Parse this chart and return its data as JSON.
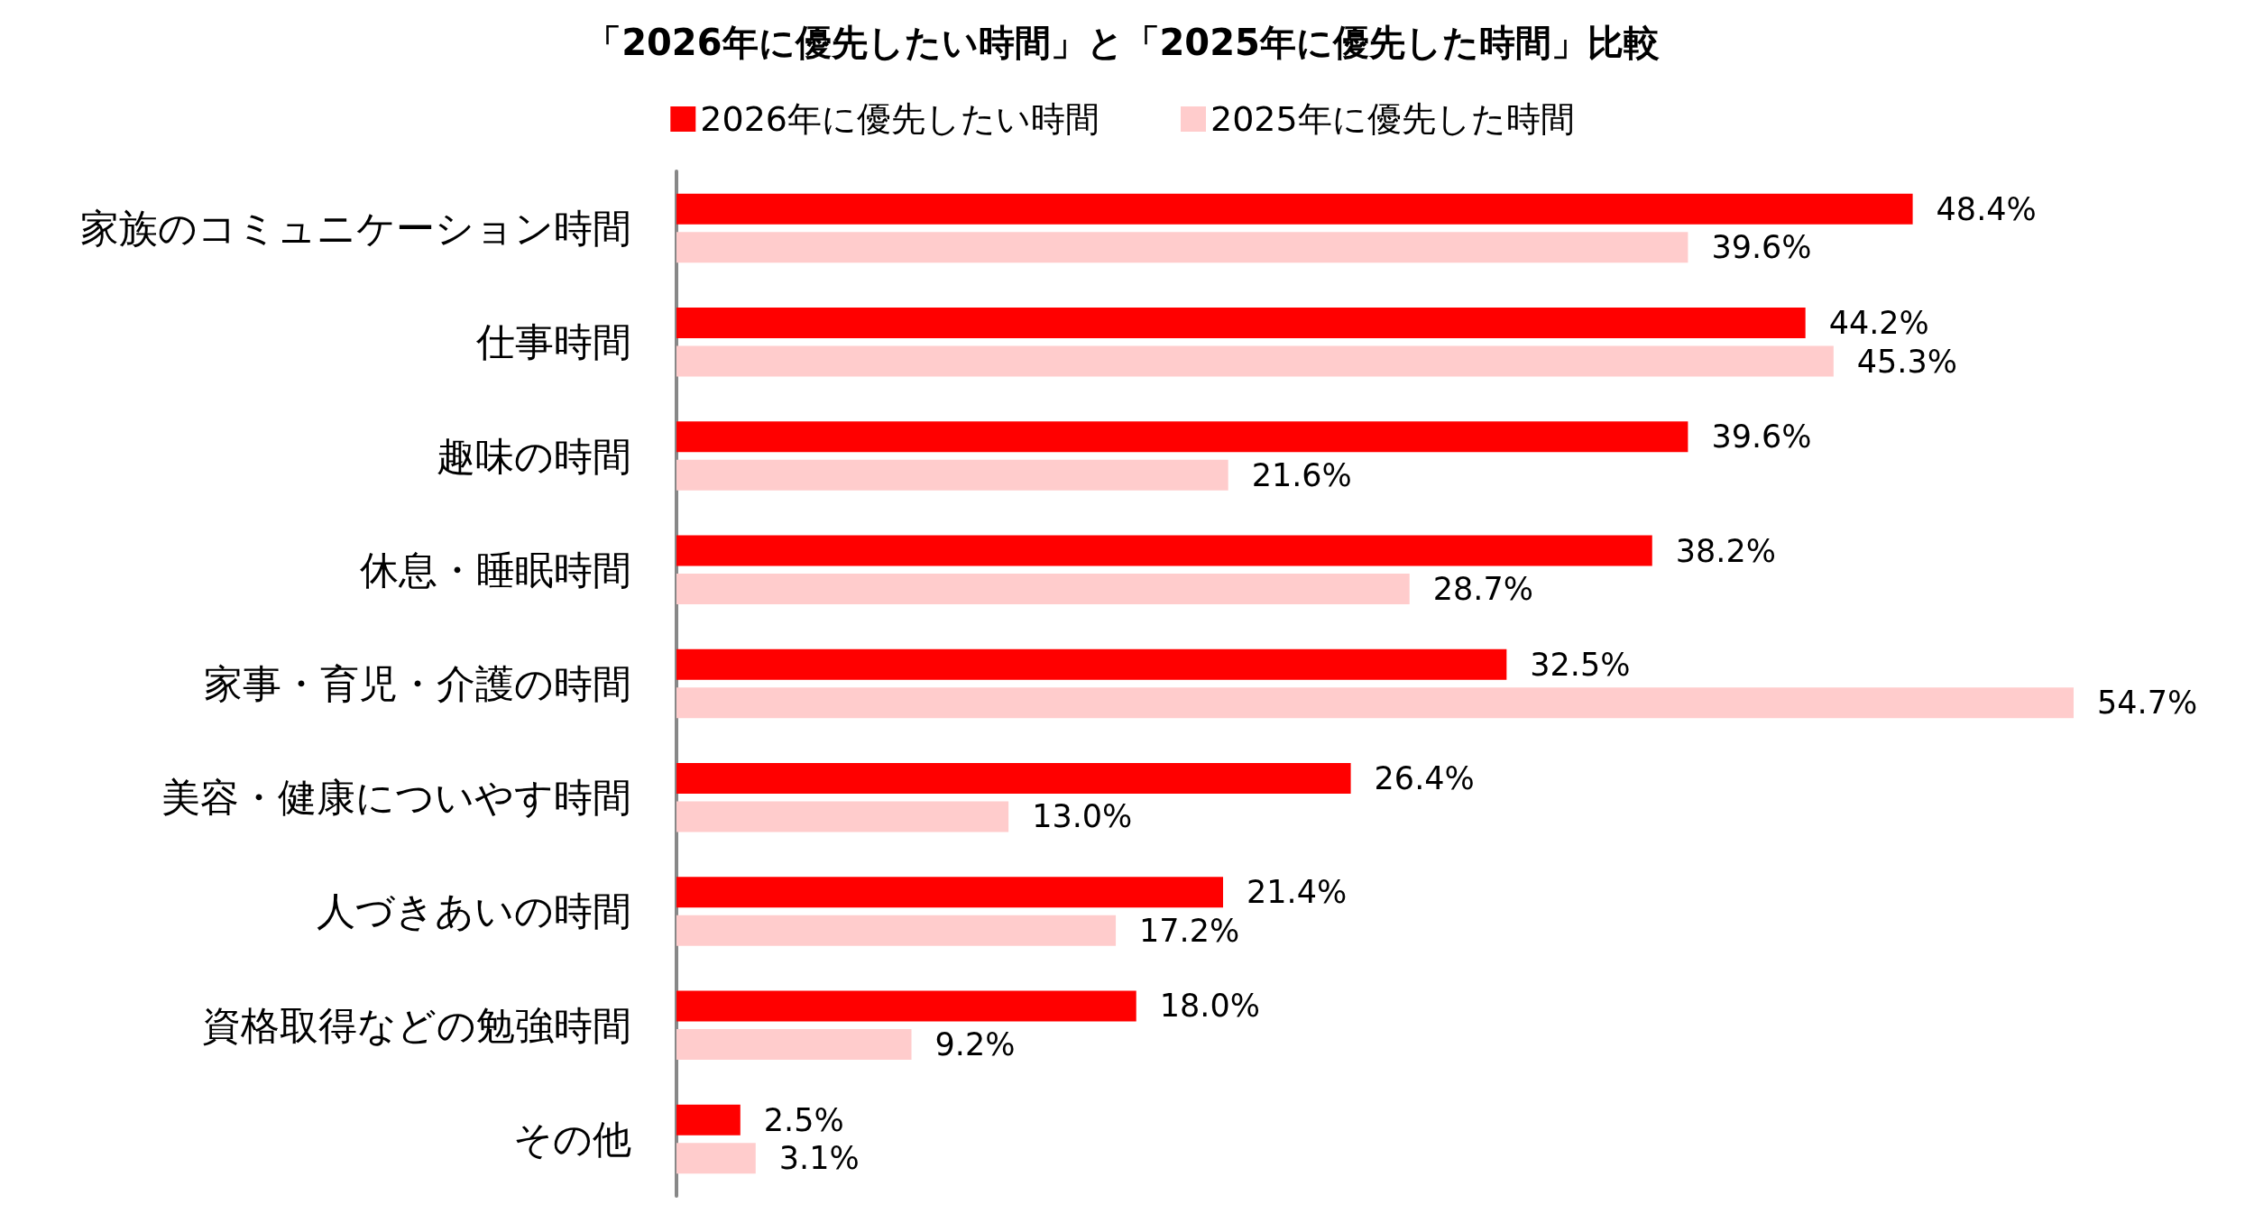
{
  "chart_data": {
    "type": "bar",
    "orientation": "horizontal",
    "title": "「2026年に優先したい時間」と「2025年に優先した時間」比較",
    "categories": [
      "家族のコミュニケーション時間",
      "仕事時間",
      "趣味の時間",
      "休息・睡眠時間",
      "家事・育児・介護の時間",
      "美容・健康についやす時間",
      "人づきあいの時間",
      "資格取得などの勉強時間",
      "その他"
    ],
    "series": [
      {
        "name": "2026年に優先したい時間",
        "color": "#ff0000",
        "values": [
          48.4,
          44.2,
          39.6,
          38.2,
          32.5,
          26.4,
          21.4,
          18.0,
          2.5
        ],
        "value_labels": [
          "48.4%",
          "44.2%",
          "39.6%",
          "38.2%",
          "32.5%",
          "26.4%",
          "21.4%",
          "18.0%",
          "2.5%"
        ]
      },
      {
        "name": "2025年に優先した時間",
        "color": "#ffcccc",
        "values": [
          39.6,
          45.3,
          21.6,
          28.7,
          54.7,
          13.0,
          17.2,
          9.2,
          3.1
        ],
        "value_labels": [
          "39.6%",
          "45.3%",
          "21.6%",
          "28.7%",
          "54.7%",
          "13.0%",
          "17.2%",
          "9.2%",
          "3.1%"
        ]
      }
    ],
    "legend": "top",
    "grid": false
  }
}
